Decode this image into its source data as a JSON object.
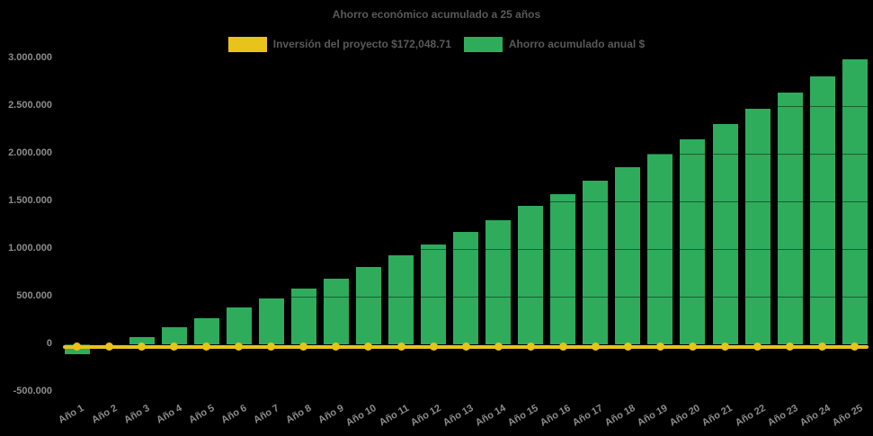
{
  "chart_data": {
    "type": "bar",
    "title": "Ahorro económico acumulado a 25 años",
    "categories": [
      "Año 1",
      "Año 2",
      "Año 3",
      "Año 4",
      "Año 5",
      "Año 6",
      "Año 7",
      "Año 8",
      "Año 9",
      "Año 10",
      "Año 11",
      "Año 12",
      "Año 13",
      "Año 14",
      "Año 15",
      "Año 16",
      "Año 17",
      "Año 18",
      "Año 19",
      "Año 20",
      "Año 21",
      "Año 22",
      "Año 23",
      "Año 24",
      "Año 25"
    ],
    "series": [
      {
        "name": "Inversión del proyecto $172,048.71",
        "type": "line",
        "color": "#E8C31A",
        "marker": "circle",
        "values": [
          0,
          0,
          0,
          0,
          0,
          0,
          0,
          0,
          0,
          0,
          0,
          0,
          0,
          0,
          0,
          0,
          0,
          0,
          0,
          0,
          0,
          0,
          0,
          0,
          0
        ]
      },
      {
        "name": "Ahorro acumulado anual $",
        "type": "bar",
        "color": "#2EAC5C",
        "values": [
          -103000,
          0,
          80000,
          175000,
          275000,
          388000,
          485000,
          583000,
          690000,
          810000,
          935000,
          1045000,
          1178000,
          1305000,
          1448000,
          1575000,
          1712000,
          1855000,
          2000000,
          2150000,
          2310000,
          2465000,
          2638000,
          2812000,
          2985000
        ]
      }
    ],
    "ylim": [
      -500000,
      3000000
    ],
    "yticks": [
      {
        "value": 3000000,
        "label": "3.000.000"
      },
      {
        "value": 2500000,
        "label": "2.500.000"
      },
      {
        "value": 2000000,
        "label": "2.000.000"
      },
      {
        "value": 1500000,
        "label": "1.500.000"
      },
      {
        "value": 1000000,
        "label": "1.000.000"
      },
      {
        "value": 500000,
        "label": "500.000"
      },
      {
        "value": 0,
        "label": "0"
      },
      {
        "value": -500000,
        "label": "-500.000"
      }
    ],
    "grid": "horizontal",
    "legend_position": "top",
    "background": "#000000",
    "text_colors": {
      "title": "#595959",
      "axis_labels": "#8c8c8c"
    }
  },
  "legend": {
    "items": [
      {
        "label": "Inversión del proyecto $172,048.71",
        "color": "#E8C31A"
      },
      {
        "label": "Ahorro acumulado anual $",
        "color": "#2EAC5C"
      }
    ]
  }
}
